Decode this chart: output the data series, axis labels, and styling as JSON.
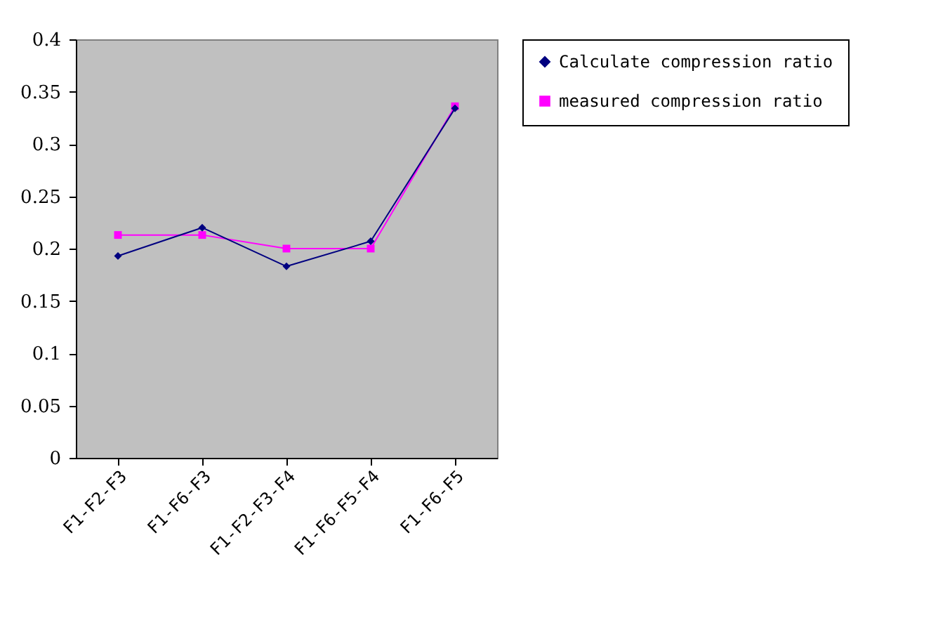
{
  "chart_data": {
    "type": "line",
    "categories": [
      "F1-F2-F3",
      "F1-F6-F3",
      "F1-F2-F3-F4",
      "F1-F6-F5-F4",
      "F1-F6-F5"
    ],
    "series": [
      {
        "name": "Calculate compression ratio",
        "color": "#000080",
        "marker": "diamond",
        "values": [
          0.193,
          0.22,
          0.183,
          0.207,
          0.334
        ]
      },
      {
        "name": "measured compression ratio",
        "color": "#ff00ff",
        "marker": "square",
        "values": [
          0.213,
          0.213,
          0.2,
          0.2,
          0.336
        ]
      }
    ],
    "ylim": [
      0,
      0.4
    ],
    "yticks": [
      0,
      0.05,
      0.1,
      0.15,
      0.2,
      0.25,
      0.3,
      0.35,
      0.4
    ],
    "grid": false,
    "legend": "right"
  }
}
